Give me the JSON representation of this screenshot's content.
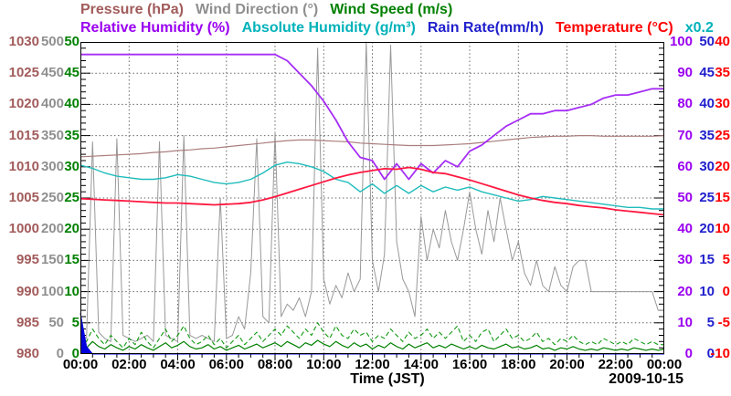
{
  "chart_data": {
    "type": "line",
    "xlabel": "Time (JST)",
    "date_label": "2009-10-15",
    "x_range_hours": [
      0,
      24
    ],
    "x_ticks": [
      "00:00",
      "02:00",
      "04:00",
      "06:00",
      "08:00",
      "10:00",
      "12:00",
      "14:00",
      "16:00",
      "18:00",
      "20:00",
      "22:00",
      "00:00"
    ],
    "grid": "dotted gray, vertical every 2 h, horizontal every 1/10 of axis range",
    "legend_position": "top, two rows",
    "legend_rows": [
      [
        {
          "key": "pressure",
          "label": "Pressure (hPa)",
          "color": "#a25b5b"
        },
        {
          "key": "wind-direction",
          "label": "Wind Direction (°)",
          "color": "#8f8f8f"
        },
        {
          "key": "wind-speed",
          "label": "Wind Speed (m/s)",
          "color": "#008000"
        }
      ],
      [
        {
          "key": "relative-humidity",
          "label": "Relative Humidity (%)",
          "color": "#9a00f0"
        },
        {
          "key": "absolute-humidity",
          "label": "Absolute Humidity (g/m³)",
          "color": "#00b2ba"
        },
        {
          "key": "rain-rate",
          "label": "Rain Rate(mm/h)",
          "color": "#2020cc"
        },
        {
          "key": "temperature",
          "label": "Temperature (°C)",
          "color": "#ff0000"
        },
        {
          "key": "scale-note",
          "label": "x0.2",
          "color": "#00b2ba"
        }
      ]
    ],
    "scale_note_meaning": "absolute humidity is read on the 0-100 axis times 0.2 (0-20 g/m³)",
    "axes_left": [
      {
        "key": "pressure",
        "label": "Pressure (hPa)",
        "color": "#a25b5b",
        "min": 980,
        "max": 1030,
        "ticks": [
          1030,
          1025,
          1020,
          1015,
          1010,
          1005,
          1000,
          995,
          990,
          985,
          980
        ]
      },
      {
        "key": "wind-direction",
        "label": "Wind Direction (deg)",
        "color": "#8f8f8f",
        "min": 0,
        "max": 500,
        "ticks": [
          500,
          450,
          400,
          350,
          300,
          250,
          200,
          150,
          100,
          50,
          0
        ]
      },
      {
        "key": "wind-speed",
        "label": "Wind Speed (m/s)",
        "color": "#008000",
        "min": 0,
        "max": 50,
        "ticks": [
          50,
          45,
          40,
          35,
          30,
          25,
          20,
          15,
          10,
          5,
          0
        ]
      }
    ],
    "axes_right": [
      {
        "key": "relative-humidity",
        "label": "Relative Humidity (%)",
        "color": "#9a00f0",
        "min": 0,
        "max": 100,
        "ticks": [
          100,
          90,
          80,
          70,
          60,
          50,
          40,
          30,
          20,
          10,
          0
        ]
      },
      {
        "key": "rain-rate",
        "label": "Rain Rate (mm/h)",
        "color": "#2020cc",
        "min": 0,
        "max": 50,
        "ticks": [
          50,
          45,
          40,
          35,
          30,
          25,
          20,
          15,
          10,
          5,
          0
        ]
      },
      {
        "key": "temperature",
        "label": "Temperature (C)",
        "color": "#ff0000",
        "min": -10,
        "max": 40,
        "ticks": [
          40,
          35,
          30,
          25,
          20,
          15,
          10,
          5,
          0,
          -5,
          -10
        ]
      }
    ],
    "series": [
      {
        "key": "wind-direction",
        "name": "Wind Direction (°)",
        "color": "#999999",
        "w": 1,
        "ymin": 0,
        "ymax": 500,
        "values": [
          30,
          25,
          340,
          35,
          25,
          20,
          345,
          30,
          25,
          20,
          25,
          30,
          20,
          340,
          30,
          25,
          20,
          350,
          30,
          25,
          30,
          25,
          20,
          250,
          25,
          30,
          60,
          40,
          130,
          345,
          60,
          50,
          355,
          60,
          80,
          70,
          90,
          60,
          100,
          490,
          120,
          80,
          110,
          90,
          130,
          100,
          120,
          500,
          150,
          100,
          160,
          495,
          180,
          120,
          100,
          60,
          220,
          150,
          200,
          170,
          230,
          180,
          150,
          200,
          260,
          200,
          160,
          230,
          180,
          250,
          200,
          150,
          180,
          130,
          110,
          150,
          110,
          100,
          140,
          110,
          100,
          140,
          150,
          150,
          100,
          100,
          100,
          100,
          100,
          100,
          100,
          100,
          100,
          100,
          100,
          70,
          70
        ]
      },
      {
        "key": "wind-speed-gust",
        "name": "Wind Speed gust (m/s)",
        "color": "#119911",
        "w": 1.1,
        "dash": true,
        "ymin": 0,
        "ymax": 50,
        "values": [
          3.0,
          2.0,
          4.0,
          2.5,
          1.5,
          3.0,
          2.0,
          1.0,
          2.5,
          1.5,
          3.5,
          2.0,
          1.0,
          2.5,
          4.0,
          2.0,
          3.0,
          4.5,
          2.5,
          1.5,
          2.0,
          3.0,
          1.5,
          2.5,
          1.0,
          2.0,
          3.0,
          1.5,
          2.5,
          3.5,
          2.0,
          3.0,
          4.0,
          3.0,
          4.5,
          3.5,
          2.5,
          4.0,
          3.0,
          5.0,
          3.5,
          2.5,
          4.5,
          3.0,
          2.5,
          4.0,
          3.0,
          3.5,
          2.0,
          3.0,
          2.5,
          4.0,
          3.0,
          2.0,
          3.5,
          2.5,
          3.0,
          4.0,
          2.5,
          3.5,
          2.5,
          3.5,
          4.5,
          2.0,
          3.0,
          2.0,
          3.5,
          4.0,
          2.0,
          3.0,
          4.0,
          2.5,
          3.0,
          2.0,
          2.5,
          3.5,
          2.0,
          2.5,
          1.5,
          2.5,
          2.0,
          3.0,
          2.0,
          1.5,
          2.0,
          1.5,
          2.5,
          2.0,
          1.5,
          2.0,
          1.5,
          2.5,
          2.0,
          1.5,
          2.0,
          1.5,
          1.5
        ]
      },
      {
        "key": "wind-speed",
        "name": "Wind Speed (m/s)",
        "color": "#008000",
        "w": 1.2,
        "ymin": 0,
        "ymax": 50,
        "values": [
          1.5,
          1.0,
          2.0,
          1.2,
          0.8,
          1.5,
          1.0,
          0.6,
          1.2,
          0.8,
          1.5,
          1.0,
          0.6,
          1.2,
          1.8,
          1.0,
          1.4,
          2.0,
          1.2,
          0.8,
          1.0,
          1.5,
          0.8,
          1.2,
          0.6,
          1.0,
          1.4,
          0.8,
          1.2,
          1.6,
          1.0,
          1.4,
          1.8,
          1.2,
          2.0,
          1.5,
          1.0,
          1.8,
          1.4,
          2.2,
          1.6,
          1.2,
          2.0,
          1.4,
          1.0,
          1.8,
          1.2,
          1.6,
          0.8,
          1.4,
          1.0,
          1.8,
          1.2,
          0.8,
          1.6,
          1.0,
          1.4,
          1.8,
          1.0,
          1.4,
          1.0,
          1.6,
          1.2,
          0.8,
          1.2,
          0.8,
          1.4,
          1.0,
          0.8,
          1.2,
          1.6,
          1.0,
          1.2,
          0.8,
          1.0,
          1.4,
          0.8,
          1.0,
          0.6,
          1.0,
          0.8,
          1.2,
          0.8,
          0.6,
          0.8,
          0.6,
          1.0,
          0.8,
          0.6,
          0.8,
          0.6,
          1.0,
          0.8,
          0.6,
          0.8,
          0.6,
          0.8
        ]
      },
      {
        "key": "rain-rate",
        "name": "Rain Rate(mm/h)",
        "color": "#0000dd",
        "w": 1,
        "fill": true,
        "ymin": 0,
        "ymax": 50,
        "values": [
          6.5,
          1.2,
          0,
          0,
          0,
          0,
          0,
          0,
          0,
          0,
          0,
          0,
          0,
          0,
          0,
          0,
          0,
          0,
          0,
          0,
          0,
          0,
          0,
          0,
          0,
          0,
          0,
          0,
          0,
          0,
          0,
          0,
          0,
          0,
          0,
          0,
          0,
          0,
          0,
          0,
          0,
          0,
          0,
          0,
          0,
          0,
          0,
          0,
          0,
          0,
          0,
          0,
          0,
          0,
          0,
          0,
          0,
          0,
          0,
          0,
          0,
          0,
          0,
          0,
          0,
          0,
          0,
          0,
          0,
          0,
          0,
          0,
          0,
          0,
          0,
          0,
          0,
          0,
          0,
          0,
          0,
          0,
          0,
          0,
          0,
          0,
          0,
          0,
          0,
          0,
          0,
          0,
          0,
          0,
          0,
          0,
          0
        ]
      },
      {
        "key": "absolute-humidity",
        "name": "Absolute Humidity (g/m³)",
        "color": "#20bcbc",
        "w": 1.4,
        "ymin": 0,
        "ymax": 20,
        "values": [
          12.1,
          11.9,
          11.6,
          11.4,
          11.3,
          11.2,
          11.2,
          11.3,
          11.5,
          11.4,
          11.2,
          11.0,
          10.9,
          11.0,
          11.2,
          11.6,
          12.1,
          12.3,
          12.2,
          12.0,
          11.7,
          11.2,
          11.0,
          10.4,
          10.9,
          10.3,
          10.8,
          10.3,
          10.8,
          10.4,
          10.7,
          10.5,
          10.7,
          10.4,
          10.2,
          10.0,
          9.8,
          9.9,
          10.1,
          10.0,
          9.9,
          9.8,
          9.7,
          9.6,
          9.5,
          9.4,
          9.4,
          9.3,
          9.3
        ]
      },
      {
        "key": "pressure",
        "name": "Pressure (hPa)",
        "color": "#ab7e7e",
        "w": 1.2,
        "ymin": 980,
        "ymax": 1030,
        "values": [
          1011.6,
          1011.7,
          1011.8,
          1011.9,
          1012.0,
          1012.1,
          1012.3,
          1012.4,
          1012.6,
          1012.7,
          1012.9,
          1013.0,
          1013.2,
          1013.4,
          1013.6,
          1013.8,
          1014.0,
          1014.2,
          1014.3,
          1014.3,
          1014.2,
          1014.1,
          1014.0,
          1013.8,
          1013.7,
          1013.6,
          1013.5,
          1013.4,
          1013.4,
          1013.4,
          1013.5,
          1013.6,
          1013.7,
          1013.9,
          1014.1,
          1014.3,
          1014.5,
          1014.7,
          1014.8,
          1014.9,
          1014.9,
          1015.0,
          1015.0,
          1014.9,
          1014.9,
          1014.9,
          1014.9,
          1014.9,
          1015.0
        ]
      },
      {
        "key": "relative-humidity",
        "name": "Relative Humidity (%)",
        "color": "#a62df5",
        "w": 1.8,
        "ymin": 0,
        "ymax": 100,
        "values": [
          96,
          96,
          96,
          96,
          96,
          96,
          96,
          96,
          96,
          96,
          96,
          96,
          96,
          96,
          96,
          96,
          96,
          94,
          90,
          86,
          81,
          75,
          68,
          63,
          62,
          56,
          61,
          56,
          61,
          58,
          62,
          60,
          65,
          67,
          70,
          73,
          75,
          77,
          77,
          78,
          78,
          79,
          80,
          82,
          83,
          83,
          84,
          85,
          85
        ]
      },
      {
        "key": "temperature",
        "name": "Temperature (°C)",
        "color": "#ff1840",
        "w": 1.8,
        "ymin": -10,
        "ymax": 40,
        "values": [
          14.9,
          14.8,
          14.7,
          14.6,
          14.5,
          14.4,
          14.3,
          14.2,
          14.2,
          14.1,
          14.0,
          13.9,
          14.0,
          14.1,
          14.3,
          14.7,
          15.2,
          15.8,
          16.4,
          17.0,
          17.6,
          18.2,
          18.7,
          19.1,
          19.4,
          19.7,
          19.6,
          19.9,
          19.6,
          19.1,
          18.9,
          18.4,
          17.9,
          17.3,
          16.7,
          16.1,
          15.5,
          15.0,
          14.6,
          14.3,
          14.1,
          13.8,
          13.6,
          13.4,
          13.1,
          12.9,
          12.7,
          12.5,
          12.3
        ]
      }
    ]
  }
}
